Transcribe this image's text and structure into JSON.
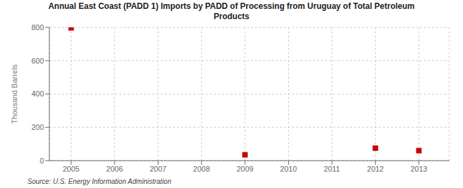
{
  "chart_data": {
    "type": "scatter",
    "title": "Annual East Coast (PADD 1) Imports by PADD of Processing from Uruguay of Total Petroleum\nProducts",
    "ylabel": "Thousand Barrels",
    "annotations": [
      "Source: U.S. Energy Information Administration"
    ],
    "x": [
      2005,
      2009,
      2012,
      2013
    ],
    "values": [
      797,
      35,
      75,
      60
    ],
    "color": "#cc0000",
    "marker": "square",
    "xlim": [
      2004.5,
      2013.7
    ],
    "xticks": [
      2005,
      2006,
      2007,
      2008,
      2009,
      2010,
      2011,
      2012,
      2013
    ],
    "ylim": [
      0,
      800
    ],
    "yticks": [
      0,
      200,
      400,
      600,
      800
    ],
    "grid": true
  }
}
